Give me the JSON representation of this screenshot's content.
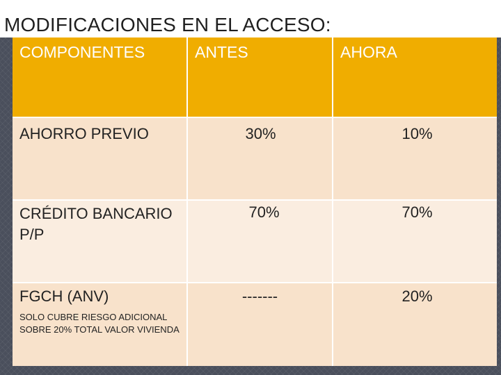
{
  "slide": {
    "title": "MODIFICACIONES EN EL ACCESO:"
  },
  "table": {
    "headers": [
      "COMPONENTES",
      "ANTES",
      "AHORA"
    ],
    "rows": [
      {
        "component": "AHORRO PREVIO",
        "note": "",
        "antes": "30%",
        "ahora": "10%"
      },
      {
        "component": "CRÉDITO BANCARIO P/P",
        "note": "",
        "antes": "70%",
        "ahora": "70%"
      },
      {
        "component": "FGCH (ANV)",
        "note": "SOLO CUBRE RIESGO ADICIONAL SOBRE 20% TOTAL VALOR VIVIENDA",
        "antes": "-------",
        "ahora": "20%"
      }
    ]
  },
  "colors": {
    "header_fill": "#f0ad00",
    "row_fill_a": "#f8e2cb",
    "row_fill_b": "#faede0",
    "background": "#4a4f5c"
  }
}
